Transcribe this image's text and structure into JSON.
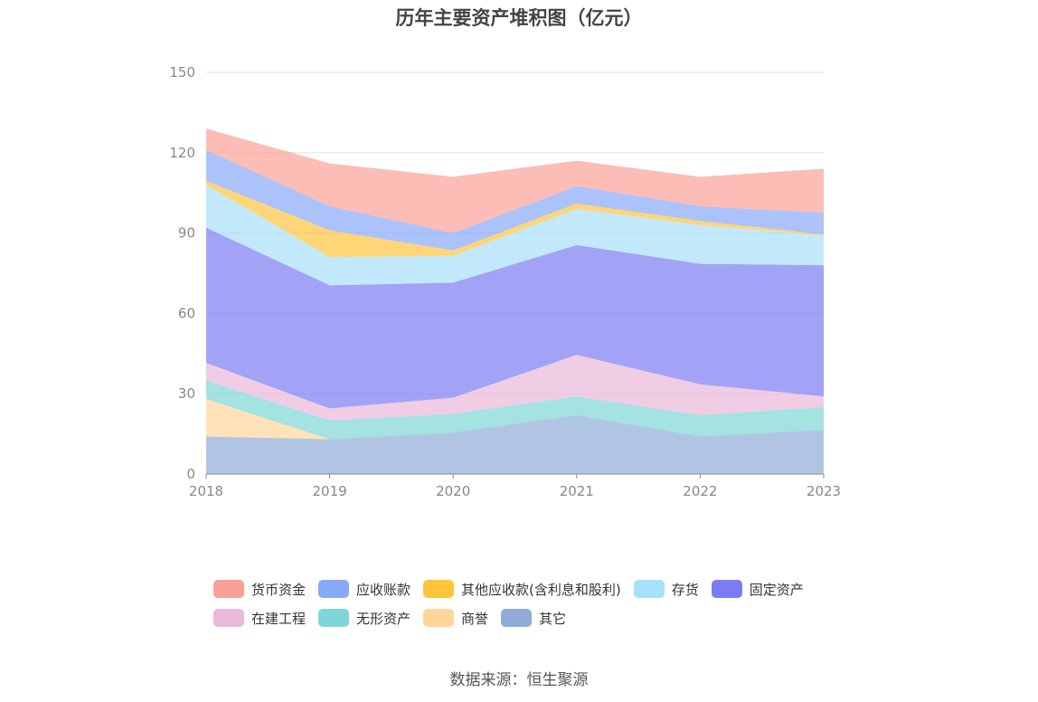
{
  "source_label": "数据来源：恒生聚源",
  "chart_data": {
    "type": "area",
    "stacked": true,
    "title": "历年主要资产堆积图（亿元）",
    "xlabel": "",
    "ylabel": "",
    "x": [
      "2018",
      "2019",
      "2020",
      "2021",
      "2022",
      "2023"
    ],
    "ylim": [
      0,
      150
    ],
    "yticks": [
      0,
      30,
      60,
      90,
      120,
      150
    ],
    "grid": true,
    "legend_position": "bottom",
    "series": [
      {
        "name": "其它",
        "color": "#8facd8",
        "values": [
          14,
          13,
          15.5,
          22,
          14,
          16.5
        ]
      },
      {
        "name": "商誉",
        "color": "#ffd699",
        "values": [
          14,
          0,
          0,
          0,
          0,
          0
        ]
      },
      {
        "name": "无形资产",
        "color": "#7fd6d6",
        "values": [
          7,
          7,
          7,
          7,
          8,
          8.5
        ]
      },
      {
        "name": "在建工程",
        "color": "#eab8d8",
        "values": [
          6.5,
          4.5,
          6,
          15.5,
          11.5,
          4
        ]
      },
      {
        "name": "固定资产",
        "color": "#7b7cf3",
        "values": [
          50.5,
          46,
          43,
          41,
          45,
          49
        ]
      },
      {
        "name": "存货",
        "color": "#a6e0fa",
        "values": [
          16,
          10.5,
          10,
          13.5,
          14.5,
          11
        ]
      },
      {
        "name": "其他应收款(含利息和股利)",
        "color": "#ffc53d",
        "values": [
          1.5,
          10,
          2,
          2,
          1.5,
          0.5
        ]
      },
      {
        "name": "应收账款",
        "color": "#88a8f8",
        "values": [
          11.5,
          9,
          6.5,
          6.5,
          5.5,
          8
        ]
      },
      {
        "name": "货币资金",
        "color": "#f9a197",
        "values": [
          8,
          16,
          21,
          9.5,
          11,
          16.5
        ]
      }
    ],
    "legend_order": [
      "货币资金",
      "应收账款",
      "其他应收款(含利息和股利)",
      "存货",
      "固定资产",
      "在建工程",
      "无形资产",
      "商誉",
      "其它"
    ]
  }
}
